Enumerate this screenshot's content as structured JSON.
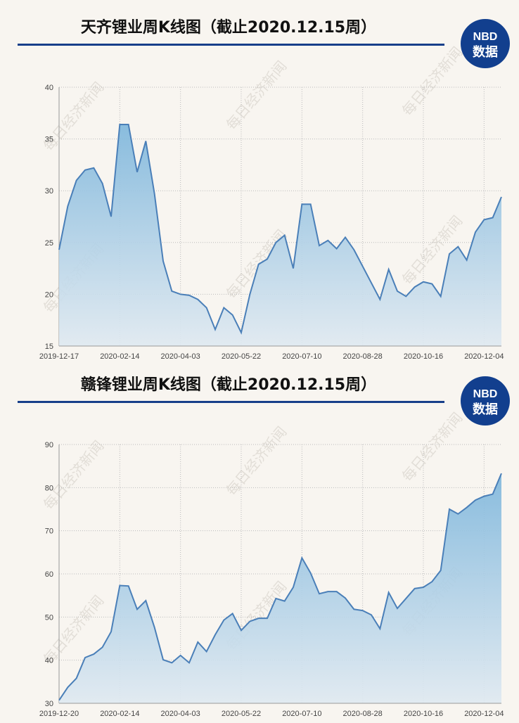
{
  "logo": {
    "top": "NBD",
    "bottom": "数据"
  },
  "watermark": "每日经济新闻",
  "chart_data": [
    {
      "type": "area",
      "title": "天齐锂业周K线图（截止2020.12.15周）",
      "categories": [
        "2019-12-17",
        null,
        null,
        null,
        null,
        null,
        null,
        "2020-02-14",
        null,
        null,
        null,
        null,
        null,
        null,
        "2020-04-03",
        null,
        null,
        null,
        null,
        null,
        null,
        "2020-05-22",
        null,
        null,
        null,
        null,
        null,
        null,
        "2020-07-10",
        null,
        null,
        null,
        null,
        null,
        null,
        "2020-08-28",
        null,
        null,
        null,
        null,
        null,
        null,
        "2020-10-16",
        null,
        null,
        null,
        null,
        null,
        null,
        "2020-12-04",
        null,
        null
      ],
      "values": [
        24.3,
        28.5,
        31,
        32,
        32.2,
        30.7,
        27.5,
        36.4,
        36.4,
        31.8,
        34.8,
        29.7,
        23.2,
        20.3,
        20,
        19.9,
        19.5,
        18.7,
        16.6,
        18.7,
        18,
        16.3,
        20,
        22.9,
        23.4,
        25,
        25.7,
        22.5,
        28.7,
        28.7,
        24.7,
        25.2,
        24.4,
        25.5,
        24.3,
        22.7,
        21.1,
        19.5,
        22.4,
        20.3,
        19.8,
        20.7,
        21.2,
        21,
        19.8,
        23.9,
        24.6,
        23.3,
        26,
        27.2,
        27.4,
        29.4
      ],
      "color": "#4a7fb8",
      "ylim": [
        15,
        40
      ],
      "yticks": [
        15,
        20,
        25,
        30,
        35,
        40
      ],
      "grid": true
    },
    {
      "type": "area",
      "title": "赣锋锂业周K线图（截止2020.12.15周）",
      "categories": [
        "2019-12-20",
        null,
        null,
        null,
        null,
        null,
        null,
        "2020-02-14",
        null,
        null,
        null,
        null,
        null,
        null,
        "2020-04-03",
        null,
        null,
        null,
        null,
        null,
        null,
        "2020-05-22",
        null,
        null,
        null,
        null,
        null,
        null,
        "2020-07-10",
        null,
        null,
        null,
        null,
        null,
        null,
        "2020-08-28",
        null,
        null,
        null,
        null,
        null,
        null,
        "2020-10-16",
        null,
        null,
        null,
        null,
        null,
        null,
        "2020-12-04",
        null,
        null
      ],
      "values": [
        30.7,
        33.7,
        35.8,
        40.6,
        41.4,
        43,
        46.6,
        57.3,
        57.2,
        51.8,
        53.8,
        47.6,
        40.1,
        39.4,
        41.1,
        39.4,
        44.2,
        42,
        45.9,
        49.3,
        50.8,
        46.9,
        49,
        49.7,
        49.7,
        54.3,
        53.7,
        56.9,
        63.7,
        60.2,
        55.4,
        55.9,
        55.9,
        54.4,
        51.8,
        51.5,
        50.5,
        47.3,
        55.7,
        52,
        54.3,
        56.6,
        56.9,
        58.2,
        60.8,
        75,
        73.9,
        75.4,
        77.1,
        78,
        78.5,
        83.3
      ],
      "color": "#4a7fb8",
      "ylim": [
        30,
        90
      ],
      "yticks": [
        30,
        40,
        50,
        60,
        70,
        80,
        90
      ],
      "grid": true
    }
  ]
}
